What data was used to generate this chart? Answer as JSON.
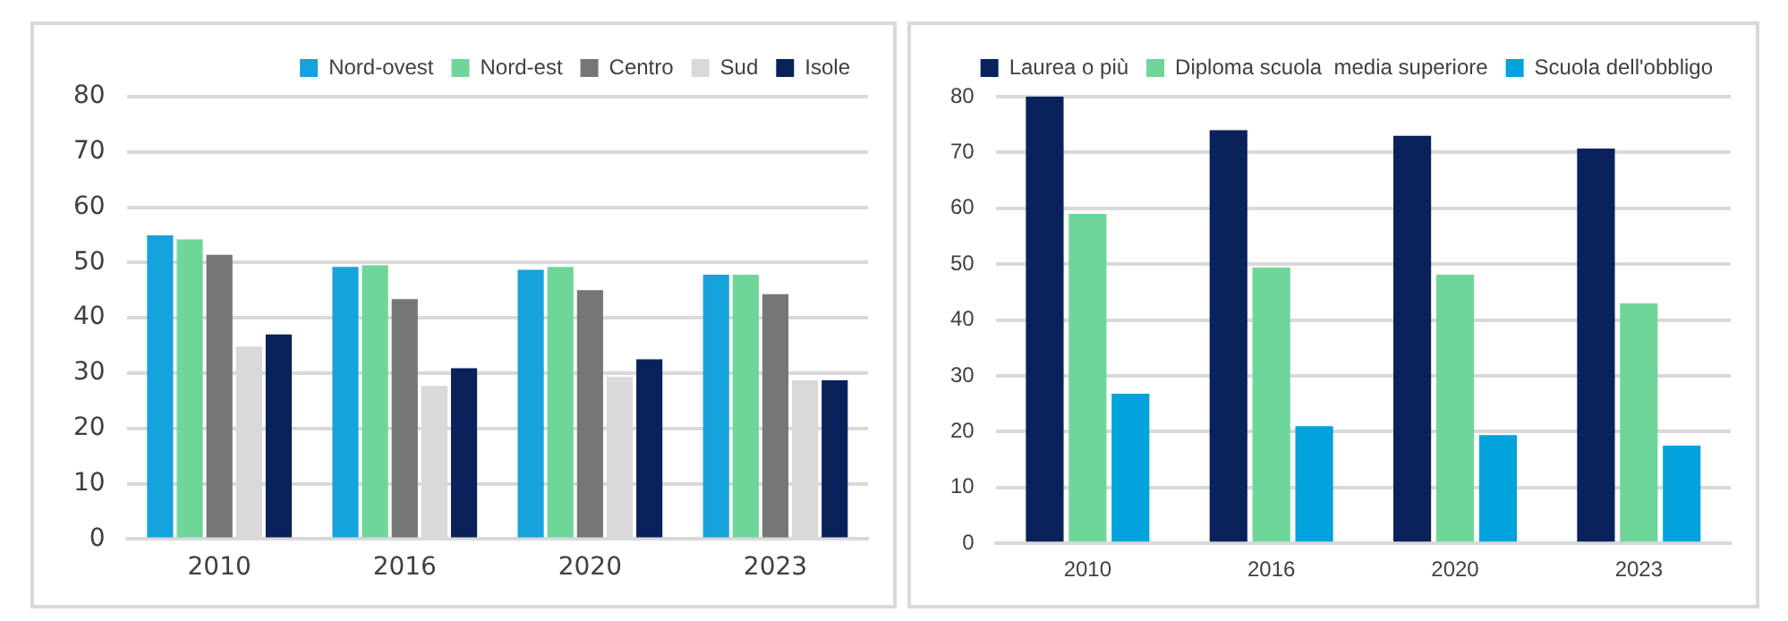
{
  "chart_data": [
    {
      "type": "bar",
      "categories": [
        "2010",
        "2016",
        "2020",
        "2023"
      ],
      "ylim": [
        0,
        80
      ],
      "yticks": [
        0,
        10,
        20,
        30,
        40,
        50,
        60,
        70,
        80
      ],
      "grid": "y",
      "legend": "top",
      "series": [
        {
          "name": "Nord-ovest",
          "color": "#16a2dc",
          "values": [
            54.9,
            49.2,
            48.7,
            47.8
          ]
        },
        {
          "name": "Nord-est",
          "color": "#6fd69a",
          "values": [
            54.2,
            49.5,
            49.2,
            47.8
          ]
        },
        {
          "name": "Centro",
          "color": "#767676",
          "values": [
            51.4,
            43.4,
            45,
            44.3
          ]
        },
        {
          "name": "Sud",
          "color": "#d9d9d9",
          "values": [
            34.8,
            27.7,
            29.3,
            28.7
          ]
        },
        {
          "name": "Isole",
          "color": "#0a225c",
          "values": [
            37,
            30.9,
            32.5,
            28.7
          ]
        }
      ]
    },
    {
      "type": "bar",
      "categories": [
        "2010",
        "2016",
        "2020",
        "2023"
      ],
      "ylim": [
        0,
        80
      ],
      "yticks": [
        0,
        10,
        20,
        30,
        40,
        50,
        60,
        70,
        80
      ],
      "grid": "y",
      "legend": "top",
      "series": [
        {
          "name": "Laurea o più",
          "color": "#0a225c",
          "values": [
            80,
            74,
            73,
            70.7
          ]
        },
        {
          "name": "Diploma scuola  media superiore",
          "color": "#6fd69a",
          "values": [
            59,
            49.4,
            48.1,
            43
          ]
        },
        {
          "name": "Scuola dell'obbligo",
          "color": "#00a3dc",
          "values": [
            26.8,
            21,
            19.4,
            17.5
          ]
        }
      ]
    }
  ]
}
